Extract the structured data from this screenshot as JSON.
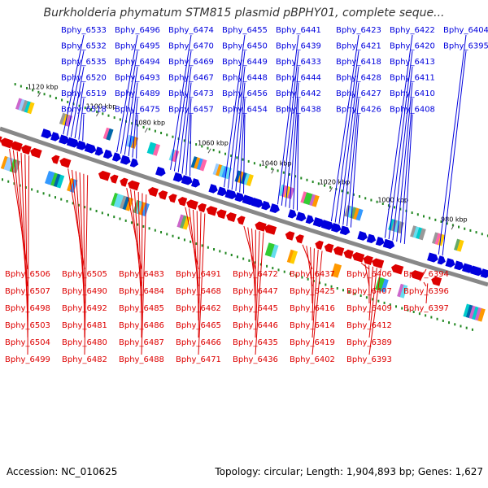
{
  "title": "Burkholderia phymatum STM815 plasmid pBPHY01, complete seque...",
  "footer": {
    "accession": "Accession: NC_010625",
    "summary": "Topology: circular; Length: 1,904,893 bp; Genes: 1,627"
  },
  "colors": {
    "plus_strand": "#0000dd",
    "minus_strand": "#dd0000",
    "backbone": "#888888",
    "tick_marks": "#228822"
  },
  "ticks": [
    "1120 kbp",
    "1100 kbp",
    "1080 kbp",
    "1060 kbp",
    "1040 kbp",
    "1020 kbp",
    "1000 kbp",
    "980 kbp"
  ],
  "plus_labels": [
    "Bphy_6533",
    "Bphy_6532",
    "Bphy_6535",
    "Bphy_6520",
    "Bphy_6519",
    "Bphy_6518",
    "Bphy_6496",
    "Bphy_6495",
    "Bphy_6494",
    "Bphy_6493",
    "Bphy_6489",
    "Bphy_6475",
    "Bphy_6474",
    "Bphy_6470",
    "Bphy_6469",
    "Bphy_6467",
    "Bphy_6473",
    "Bphy_6457",
    "Bphy_6455",
    "Bphy_6450",
    "Bphy_6449",
    "Bphy_6448",
    "Bphy_6456",
    "Bphy_6454",
    "Bphy_6441",
    "Bphy_6439",
    "Bphy_6433",
    "Bphy_6444",
    "Bphy_6442",
    "Bphy_6438",
    "Bphy_6423",
    "Bphy_6421",
    "Bphy_6418",
    "Bphy_6428",
    "Bphy_6427",
    "Bphy_6426",
    "Bphy_6422",
    "Bphy_6420",
    "Bphy_6413",
    "Bphy_6411",
    "Bphy_6410",
    "Bphy_6408",
    "Bphy_6404",
    "Bphy_6395"
  ],
  "minus_labels": [
    "Bphy_6506",
    "Bphy_6507",
    "Bphy_6498",
    "Bphy_6503",
    "Bphy_6504",
    "Bphy_6499",
    "Bphy_6505",
    "Bphy_6490",
    "Bphy_6492",
    "Bphy_6481",
    "Bphy_6480",
    "Bphy_6482",
    "Bphy_6483",
    "Bphy_6484",
    "Bphy_6485",
    "Bphy_6486",
    "Bphy_6487",
    "Bphy_6488",
    "Bphy_6491",
    "Bphy_6468",
    "Bphy_6462",
    "Bphy_6465",
    "Bphy_6466",
    "Bphy_6471",
    "Bphy_6472",
    "Bphy_6447",
    "Bphy_6445",
    "Bphy_6446",
    "Bphy_6435",
    "Bphy_6436",
    "Bphy_6437",
    "Bphy_6425",
    "Bphy_6416",
    "Bphy_6414",
    "Bphy_6419",
    "Bphy_6402",
    "Bphy_6406",
    "Bphy_6407",
    "Bphy_6409",
    "Bphy_6412",
    "Bphy_6389",
    "Bphy_6393",
    "Bphy_6394",
    "Bphy_6396",
    "Bphy_6397"
  ]
}
